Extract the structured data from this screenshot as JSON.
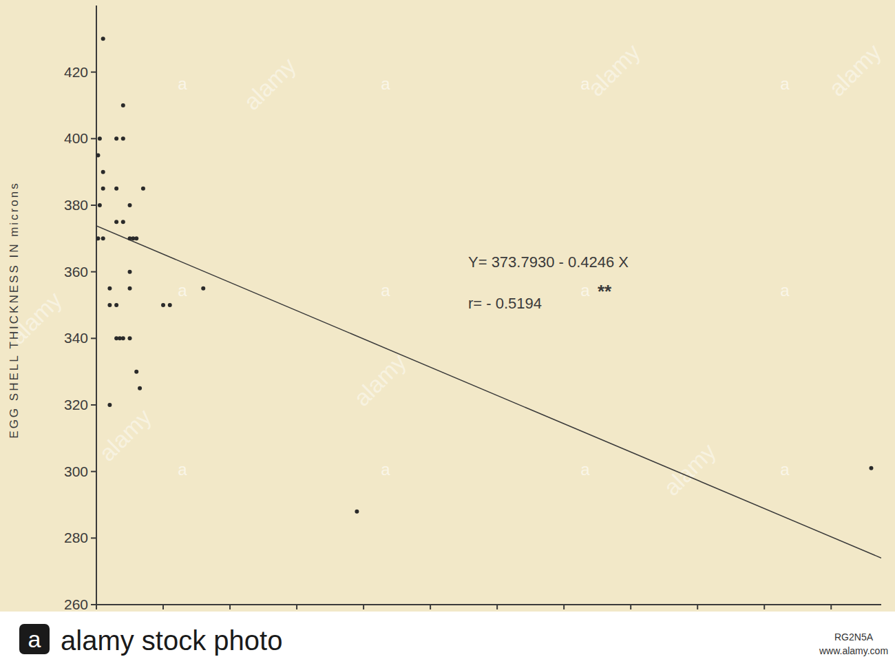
{
  "chart_data": {
    "type": "scatter",
    "y_label": "EGG SHELL THICKNESS IN microns",
    "x": [
      2,
      8,
      8,
      6,
      1,
      0.5,
      2,
      2,
      6,
      14,
      1,
      10,
      6,
      8,
      0.5,
      2,
      10,
      11,
      12,
      10,
      4,
      10,
      32,
      4,
      6,
      20,
      22,
      6,
      7,
      8,
      10,
      12,
      13,
      4,
      78,
      232
    ],
    "values": [
      430,
      410,
      400,
      400,
      400,
      395,
      390,
      385,
      385,
      385,
      380,
      380,
      375,
      375,
      370,
      370,
      370,
      370,
      370,
      360,
      355,
      355,
      355,
      350,
      350,
      350,
      350,
      340,
      340,
      340,
      340,
      330,
      325,
      320,
      288,
      301
    ],
    "color": "#2a2a2a",
    "marker": "circle",
    "regression": {
      "intercept": 373.793,
      "slope": -0.4246
    },
    "annotations": [
      "Y= 373.7930 - 0.4246 X",
      "r= - 0.5194",
      "**"
    ],
    "xlim": [
      0,
      235
    ],
    "xticks": [
      0,
      20,
      40,
      60,
      80,
      100,
      120,
      140,
      160,
      180,
      200,
      220
    ],
    "ylim": [
      260,
      440
    ],
    "yticks": [
      260,
      280,
      300,
      320,
      340,
      360,
      380,
      400,
      420
    ],
    "grid": false,
    "tick_labels": "y",
    "watermark": "alamy",
    "watermark_logo": "a",
    "banner": {
      "logo": "a",
      "text": "alamy stock photo",
      "id": "RG2N5A",
      "url": "www.alamy.com"
    }
  }
}
